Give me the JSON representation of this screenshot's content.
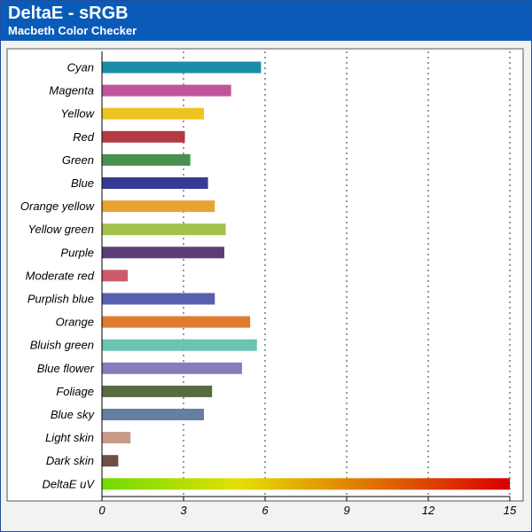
{
  "header": {
    "title": "DeltaE - sRGB",
    "subtitle": "Macbeth Color Checker"
  },
  "chart_data": {
    "type": "bar",
    "orientation": "horizontal",
    "title": "DeltaE - sRGB",
    "subtitle": "Macbeth Color Checker",
    "xlabel": "",
    "ylabel": "",
    "xlim": [
      0,
      15
    ],
    "xticks": [
      0,
      3,
      6,
      9,
      12,
      15
    ],
    "grid": "vertical-dotted",
    "categories": [
      "Cyan",
      "Magenta",
      "Yellow",
      "Red",
      "Green",
      "Blue",
      "Orange yellow",
      "Yellow green",
      "Purple",
      "Moderate red",
      "Purplish blue",
      "Orange",
      "Bluish green",
      "Blue flower",
      "Foliage",
      "Blue sky",
      "Light skin",
      "Dark skin",
      "DeltaE uV"
    ],
    "values": [
      5.85,
      4.75,
      3.75,
      3.05,
      3.25,
      3.9,
      4.15,
      4.55,
      4.5,
      0.95,
      4.15,
      5.45,
      5.7,
      5.15,
      4.05,
      3.75,
      1.05,
      0.6,
      15
    ],
    "colors": [
      "#1a8ea6",
      "#c0559c",
      "#eec423",
      "#b43a46",
      "#4a9150",
      "#353a93",
      "#e8a433",
      "#a2c24a",
      "#5c3d78",
      "#cc5b6a",
      "#5860ad",
      "#df7b2e",
      "#6cc3b0",
      "#8a7bbb",
      "#566b3f",
      "#677ea3",
      "#c89b86",
      "#6f4f45",
      "gradient"
    ],
    "gradient_stops": [
      "#6fdc00",
      "#e4e000",
      "#e07000",
      "#d80000"
    ]
  }
}
